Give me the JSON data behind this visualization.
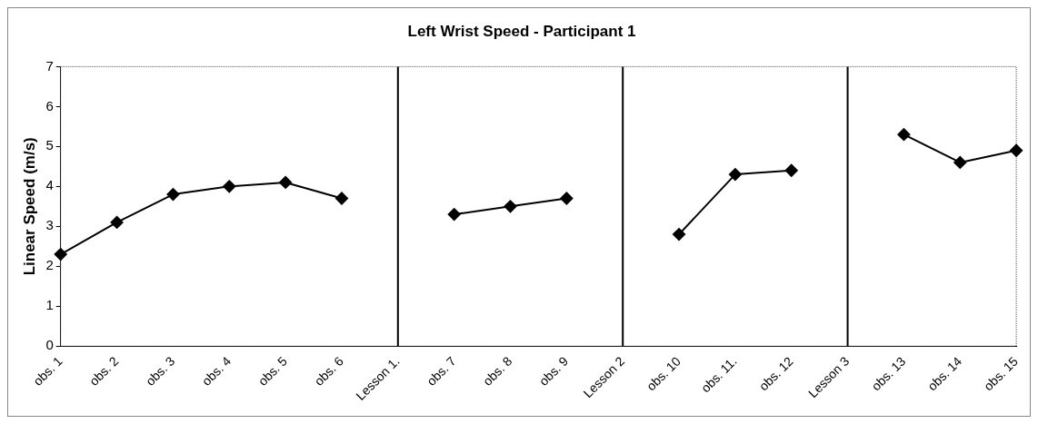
{
  "chart_data": {
    "type": "line",
    "title": "Left Wrist Speed - Participant 1",
    "ylabel": "Linear Speed (m/s)",
    "categories": [
      "obs. 1",
      "obs. 2",
      "obs. 3",
      "obs. 4",
      "obs. 5",
      "obs. 6",
      "Lesson 1.",
      "obs. 7",
      "obs. 8",
      "obs. 9",
      "Lesson 2",
      "obs. 10",
      "obs. 11.",
      "obs. 12",
      "Lesson 3",
      "obs. 13",
      "obs. 14",
      "obs. 15"
    ],
    "series": [
      {
        "color": "#000000",
        "values": [
          2.3,
          3.1,
          3.8,
          4.0,
          4.1,
          3.7,
          null,
          3.3,
          3.5,
          3.7,
          null,
          2.8,
          4.3,
          4.4,
          null,
          5.3,
          4.6,
          4.9
        ]
      }
    ],
    "ylim": [
      0,
      7
    ],
    "yticks": [
      0,
      1,
      2,
      3,
      4,
      5,
      6,
      7
    ],
    "grid": false,
    "legend": false,
    "marker": "diamond",
    "line_style": "solid",
    "ref_lines": [
      {
        "axis": "x",
        "value": "Lesson 1.",
        "color": "#000000"
      },
      {
        "axis": "x",
        "value": "Lesson 2",
        "color": "#000000"
      },
      {
        "axis": "x",
        "value": "Lesson 3",
        "color": "#000000"
      }
    ]
  }
}
